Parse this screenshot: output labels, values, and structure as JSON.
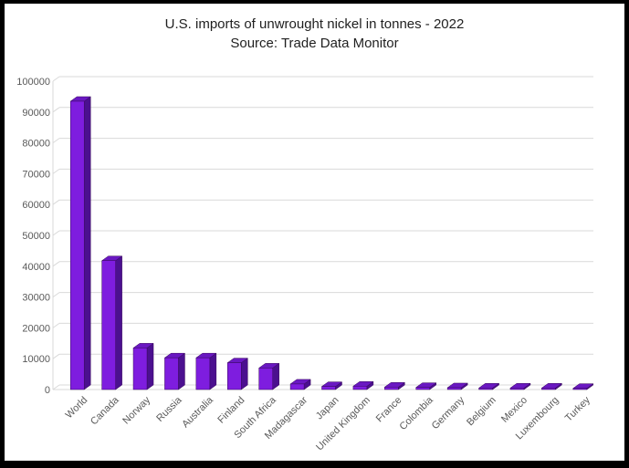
{
  "chart_data": {
    "type": "bar",
    "title": "U.S. imports of unwrought nickel in tonnes - 2022",
    "subtitle": "Source: Trade Data Monitor",
    "categories": [
      "World",
      "Canada",
      "Norway",
      "Russia",
      "Australia",
      "Finland",
      "South Africa",
      "Madagascar",
      "Japan",
      "United Kingdom",
      "France",
      "Colombia",
      "Germany",
      "Belgium",
      "Mexico",
      "Luxembourg",
      "Turkey"
    ],
    "values": [
      93500,
      41800,
      13500,
      10300,
      10300,
      8700,
      7000,
      1800,
      1000,
      1100,
      800,
      700,
      600,
      500,
      500,
      500,
      400
    ],
    "xlabel": "",
    "ylabel": "",
    "ylim": [
      0,
      100000
    ],
    "ytick_step": 10000,
    "ytick_labels": [
      "0",
      "10000",
      "20000",
      "30000",
      "40000",
      "50000",
      "60000",
      "70000",
      "80000",
      "90000",
      "100000"
    ],
    "grid": true,
    "legend": false,
    "bar_style": "3d",
    "colors": {
      "bar_front": "#7E1DDF",
      "bar_side": "#4B108F",
      "bar_top": "#6A18C2",
      "bar_outline": "#38085C",
      "gridline": "#D9D9D9",
      "axis_text": "#595959",
      "title_text": "#1F1F1F",
      "background": "#FFFFFF",
      "frame_border": "#000000"
    }
  }
}
